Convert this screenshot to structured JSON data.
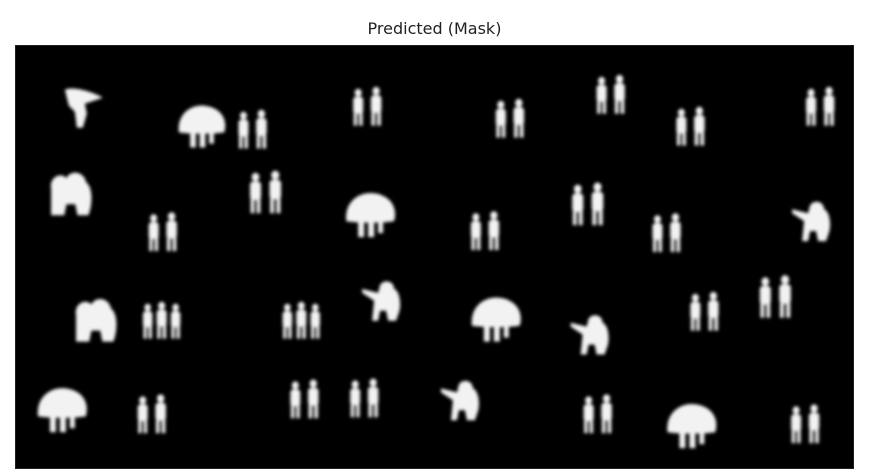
{
  "figure": {
    "title": "Predicted (Mask)"
  },
  "mask": {
    "background_color": "#000000",
    "foreground_color": "#f2f2f2",
    "blob_types_present": [
      "pair-of-figures",
      "trio-of-figures",
      "mushroom-shape",
      "pointing-figure",
      "clustered-figures",
      "tilted-figure"
    ]
  }
}
